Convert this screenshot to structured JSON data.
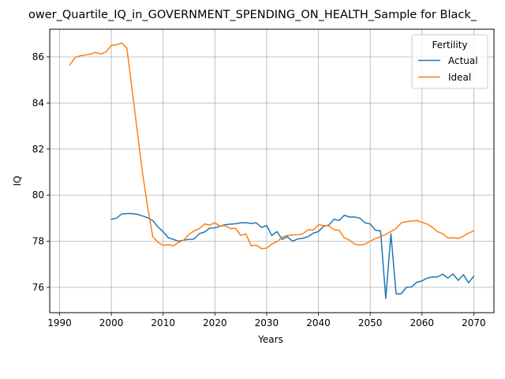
{
  "chart_data": {
    "type": "line",
    "title": "ower_Quartile_IQ_in_GOVERNMENT_SPENDING_ON_HEALTH_Sample for Black_",
    "xlabel": "Years",
    "ylabel": "IQ",
    "xlim": [
      1988.1,
      2073.9
    ],
    "ylim": [
      74.9,
      87.2
    ],
    "xticks": [
      1990,
      2000,
      2010,
      2020,
      2030,
      2040,
      2050,
      2060,
      2070
    ],
    "yticks": [
      76,
      78,
      80,
      82,
      84,
      86
    ],
    "grid": true,
    "legend": {
      "title": "Fertility",
      "placement": "top-right"
    },
    "series": [
      {
        "name": "Actual",
        "color": "#1f77b4",
        "x": [
          2000,
          2001,
          2002,
          2003,
          2004,
          2005,
          2006,
          2007,
          2008,
          2009,
          2010,
          2011,
          2012,
          2013,
          2014,
          2015,
          2016,
          2017,
          2018,
          2019,
          2020,
          2021,
          2022,
          2023,
          2024,
          2025,
          2026,
          2027,
          2028,
          2029,
          2030,
          2031,
          2032,
          2033,
          2034,
          2035,
          2036,
          2037,
          2038,
          2039,
          2040,
          2041,
          2042,
          2043,
          2044,
          2045,
          2046,
          2047,
          2048,
          2049,
          2050,
          2051,
          2052,
          2053,
          2054,
          2055,
          2056,
          2057,
          2058,
          2059,
          2060,
          2061,
          2062,
          2063,
          2064,
          2065,
          2066,
          2067,
          2068,
          2069,
          2070
        ],
        "y": [
          78.95,
          79.0,
          79.18,
          79.2,
          79.2,
          79.17,
          79.1,
          79.02,
          78.9,
          78.62,
          78.42,
          78.15,
          78.08,
          78.0,
          78.05,
          78.08,
          78.1,
          78.33,
          78.4,
          78.57,
          78.58,
          78.65,
          78.72,
          78.74,
          78.76,
          78.8,
          78.8,
          78.77,
          78.8,
          78.6,
          78.68,
          78.25,
          78.42,
          78.08,
          78.2,
          78.0,
          78.1,
          78.13,
          78.2,
          78.35,
          78.42,
          78.65,
          78.7,
          78.95,
          78.9,
          79.13,
          79.05,
          79.05,
          79.0,
          78.8,
          78.75,
          78.48,
          78.45,
          75.52,
          78.32,
          75.72,
          75.72,
          76.0,
          76.02,
          76.22,
          76.28,
          76.4,
          76.45,
          76.45,
          76.57,
          76.4,
          76.58,
          76.3,
          76.55,
          76.2,
          76.48
        ]
      },
      {
        "name": "Ideal",
        "color": "#ff7f0e",
        "x": [
          1992,
          1993,
          1994,
          1995,
          1996,
          1997,
          1998,
          1999,
          2000,
          2001,
          2002,
          2003,
          2004,
          2005,
          2006,
          2007,
          2008,
          2009,
          2010,
          2011,
          2012,
          2013,
          2014,
          2015,
          2016,
          2017,
          2018,
          2019,
          2020,
          2021,
          2022,
          2023,
          2024,
          2025,
          2026,
          2027,
          2028,
          2029,
          2030,
          2031,
          2032,
          2033,
          2034,
          2035,
          2036,
          2037,
          2038,
          2039,
          2040,
          2041,
          2042,
          2043,
          2044,
          2045,
          2046,
          2047,
          2048,
          2049,
          2050,
          2051,
          2052,
          2053,
          2054,
          2055,
          2056,
          2057,
          2058,
          2059,
          2060,
          2061,
          2062,
          2063,
          2064,
          2065,
          2066,
          2067,
          2068,
          2069,
          2070
        ],
        "y": [
          85.65,
          85.97,
          86.05,
          86.08,
          86.12,
          86.2,
          86.12,
          86.22,
          86.5,
          86.52,
          86.6,
          86.38,
          84.6,
          82.8,
          81.0,
          79.5,
          78.2,
          77.95,
          77.82,
          77.85,
          77.8,
          77.95,
          78.05,
          78.3,
          78.45,
          78.55,
          78.75,
          78.7,
          78.8,
          78.65,
          78.68,
          78.55,
          78.56,
          78.25,
          78.32,
          77.8,
          77.83,
          77.68,
          77.7,
          77.88,
          77.98,
          78.18,
          78.25,
          78.27,
          78.28,
          78.32,
          78.5,
          78.48,
          78.72,
          78.68,
          78.67,
          78.5,
          78.47,
          78.15,
          78.05,
          77.87,
          77.83,
          77.87,
          78.0,
          78.12,
          78.2,
          78.3,
          78.42,
          78.55,
          78.8,
          78.85,
          78.88,
          78.9,
          78.82,
          78.75,
          78.6,
          78.42,
          78.33,
          78.14,
          78.15,
          78.12,
          78.22,
          78.35,
          78.45
        ]
      }
    ]
  }
}
